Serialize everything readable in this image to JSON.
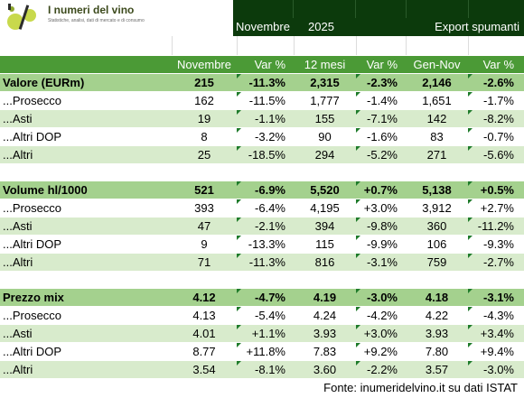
{
  "header": {
    "logo_title": "I numeri del vino",
    "logo_subtitle": "Statistiche, analisi, dati di mercato e di consumo",
    "month": "Novembre",
    "year": "2025",
    "category": "Export spumanti"
  },
  "columns": [
    "Novembre",
    "Var %",
    "12 mesi",
    "Var %",
    "Gen-Nov",
    "Var %"
  ],
  "sections": [
    {
      "rows": [
        {
          "label": "Valore (EURm)",
          "v": [
            "215",
            "-11.3%",
            "2,315",
            "-2.3%",
            "2,146",
            "-2.6%"
          ]
        },
        {
          "label": "...Prosecco",
          "v": [
            "162",
            "-11.5%",
            "1,777",
            "-1.4%",
            "1,651",
            "-1.7%"
          ]
        },
        {
          "label": "...Asti",
          "v": [
            "19",
            "-1.1%",
            "155",
            "-7.1%",
            "142",
            "-8.2%"
          ]
        },
        {
          "label": "...Altri DOP",
          "v": [
            "8",
            "-3.2%",
            "90",
            "-1.6%",
            "83",
            "-0.7%"
          ]
        },
        {
          "label": "...Altri",
          "v": [
            "25",
            "-18.5%",
            "294",
            "-5.2%",
            "271",
            "-5.6%"
          ]
        }
      ]
    },
    {
      "rows": [
        {
          "label": "Volume hl/1000",
          "v": [
            "521",
            "-6.9%",
            "5,520",
            "+0.7%",
            "5,138",
            "+0.5%"
          ]
        },
        {
          "label": "...Prosecco",
          "v": [
            "393",
            "-6.4%",
            "4,195",
            "+3.0%",
            "3,912",
            "+2.7%"
          ]
        },
        {
          "label": "...Asti",
          "v": [
            "47",
            "-2.1%",
            "394",
            "-9.8%",
            "360",
            "-11.2%"
          ]
        },
        {
          "label": "...Altri DOP",
          "v": [
            "9",
            "-13.3%",
            "115",
            "-9.9%",
            "106",
            "-9.3%"
          ]
        },
        {
          "label": "...Altri",
          "v": [
            "71",
            "-11.3%",
            "816",
            "-3.1%",
            "759",
            "-2.7%"
          ]
        }
      ]
    },
    {
      "rows": [
        {
          "label": "Prezzo mix",
          "v": [
            "4.12",
            "-4.7%",
            "4.19",
            "-3.0%",
            "4.18",
            "-3.1%"
          ]
        },
        {
          "label": "...Prosecco",
          "v": [
            "4.13",
            "-5.4%",
            "4.24",
            "-4.2%",
            "4.22",
            "-4.3%"
          ]
        },
        {
          "label": "...Asti",
          "v": [
            "4.01",
            "+1.1%",
            "3.93",
            "+3.0%",
            "3.93",
            "+3.4%"
          ]
        },
        {
          "label": "...Altri DOP",
          "v": [
            "8.77",
            "+11.8%",
            "7.83",
            "+9.2%",
            "7.80",
            "+9.4%"
          ]
        },
        {
          "label": "...Altri",
          "v": [
            "3.54",
            "-8.1%",
            "3.60",
            "-2.2%",
            "3.57",
            "-3.0%"
          ]
        }
      ]
    }
  ],
  "footer": "Fonte: inumeridelvino.it su dati ISTAT",
  "colors": {
    "header_dark": "#0c3a0c",
    "column_header": "#4b9a36",
    "main_row": "#a4d18e",
    "alt_row": "#d8ebcc",
    "marker": "#1e7b2a"
  }
}
